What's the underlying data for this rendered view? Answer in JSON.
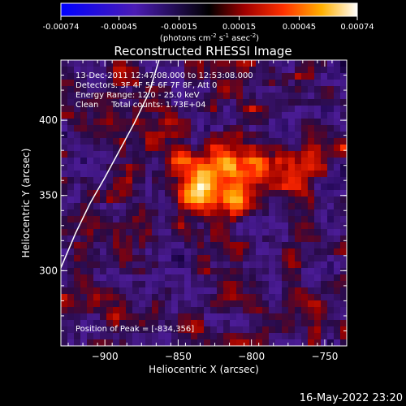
{
  "chart_data": {
    "type": "heatmap",
    "title": "Reconstructed RHESSI Image",
    "xlabel": "Heliocentric X (arcsec)",
    "ylabel": "Heliocentric Y (arcsec)",
    "xlim": [
      -930,
      -735
    ],
    "ylim": [
      250,
      440
    ],
    "x_ticks": [
      -900,
      -850,
      -800,
      -750
    ],
    "y_ticks": [
      300,
      350,
      400
    ],
    "colorbar": {
      "min": -0.00074,
      "max": 0.00074,
      "tick_values": [
        -0.00074,
        -0.00045,
        -0.00015,
        0.00015,
        0.00045,
        0.00074
      ],
      "tick_labels": [
        "-0.00074",
        "-0.00045",
        "-0.00015",
        "0.00015",
        "0.00045",
        "0.00074"
      ],
      "unit_label_prefix": "(photons cm",
      "unit_label_mid1": " s",
      "unit_label_mid2": " asec",
      "unit_label_suffix": ")",
      "sup_1": "-2",
      "sup_2": "-1",
      "sup_3": "-2"
    },
    "annotations": [
      "13-Dec-2011 12:47:08.000 to 12:53:08.000",
      "Detectors: 3F 4F 5F 6F 7F 8F, Att 0",
      "Energy Range: 12.0 - 25.0 keV",
      "Clean     Total counts: 1.73E+04"
    ],
    "peak_label": "Position of Peak = [-834,356]",
    "peak": [
      -834,
      356
    ],
    "limb_curve": [
      [
        -930,
        302
      ],
      [
        -920,
        325
      ],
      [
        -910,
        345
      ],
      [
        -900,
        362
      ],
      [
        -890,
        380
      ],
      [
        -880,
        398
      ],
      [
        -870,
        418
      ],
      [
        -863,
        440
      ]
    ],
    "sources": [
      {
        "x": -834,
        "y": 356,
        "amp": 1.0,
        "w": 9
      },
      {
        "x": -810,
        "y": 350,
        "amp": 0.75,
        "w": 8
      },
      {
        "x": -820,
        "y": 372,
        "amp": 0.55,
        "w": 10
      },
      {
        "x": -795,
        "y": 372,
        "amp": 0.45,
        "w": 9
      },
      {
        "x": -770,
        "y": 365,
        "amp": 0.35,
        "w": 10
      },
      {
        "x": -850,
        "y": 372,
        "amp": 0.35,
        "w": 8
      }
    ],
    "grid": false,
    "legend": "none"
  },
  "footer": {
    "date": "16-May-2022 23:20"
  }
}
